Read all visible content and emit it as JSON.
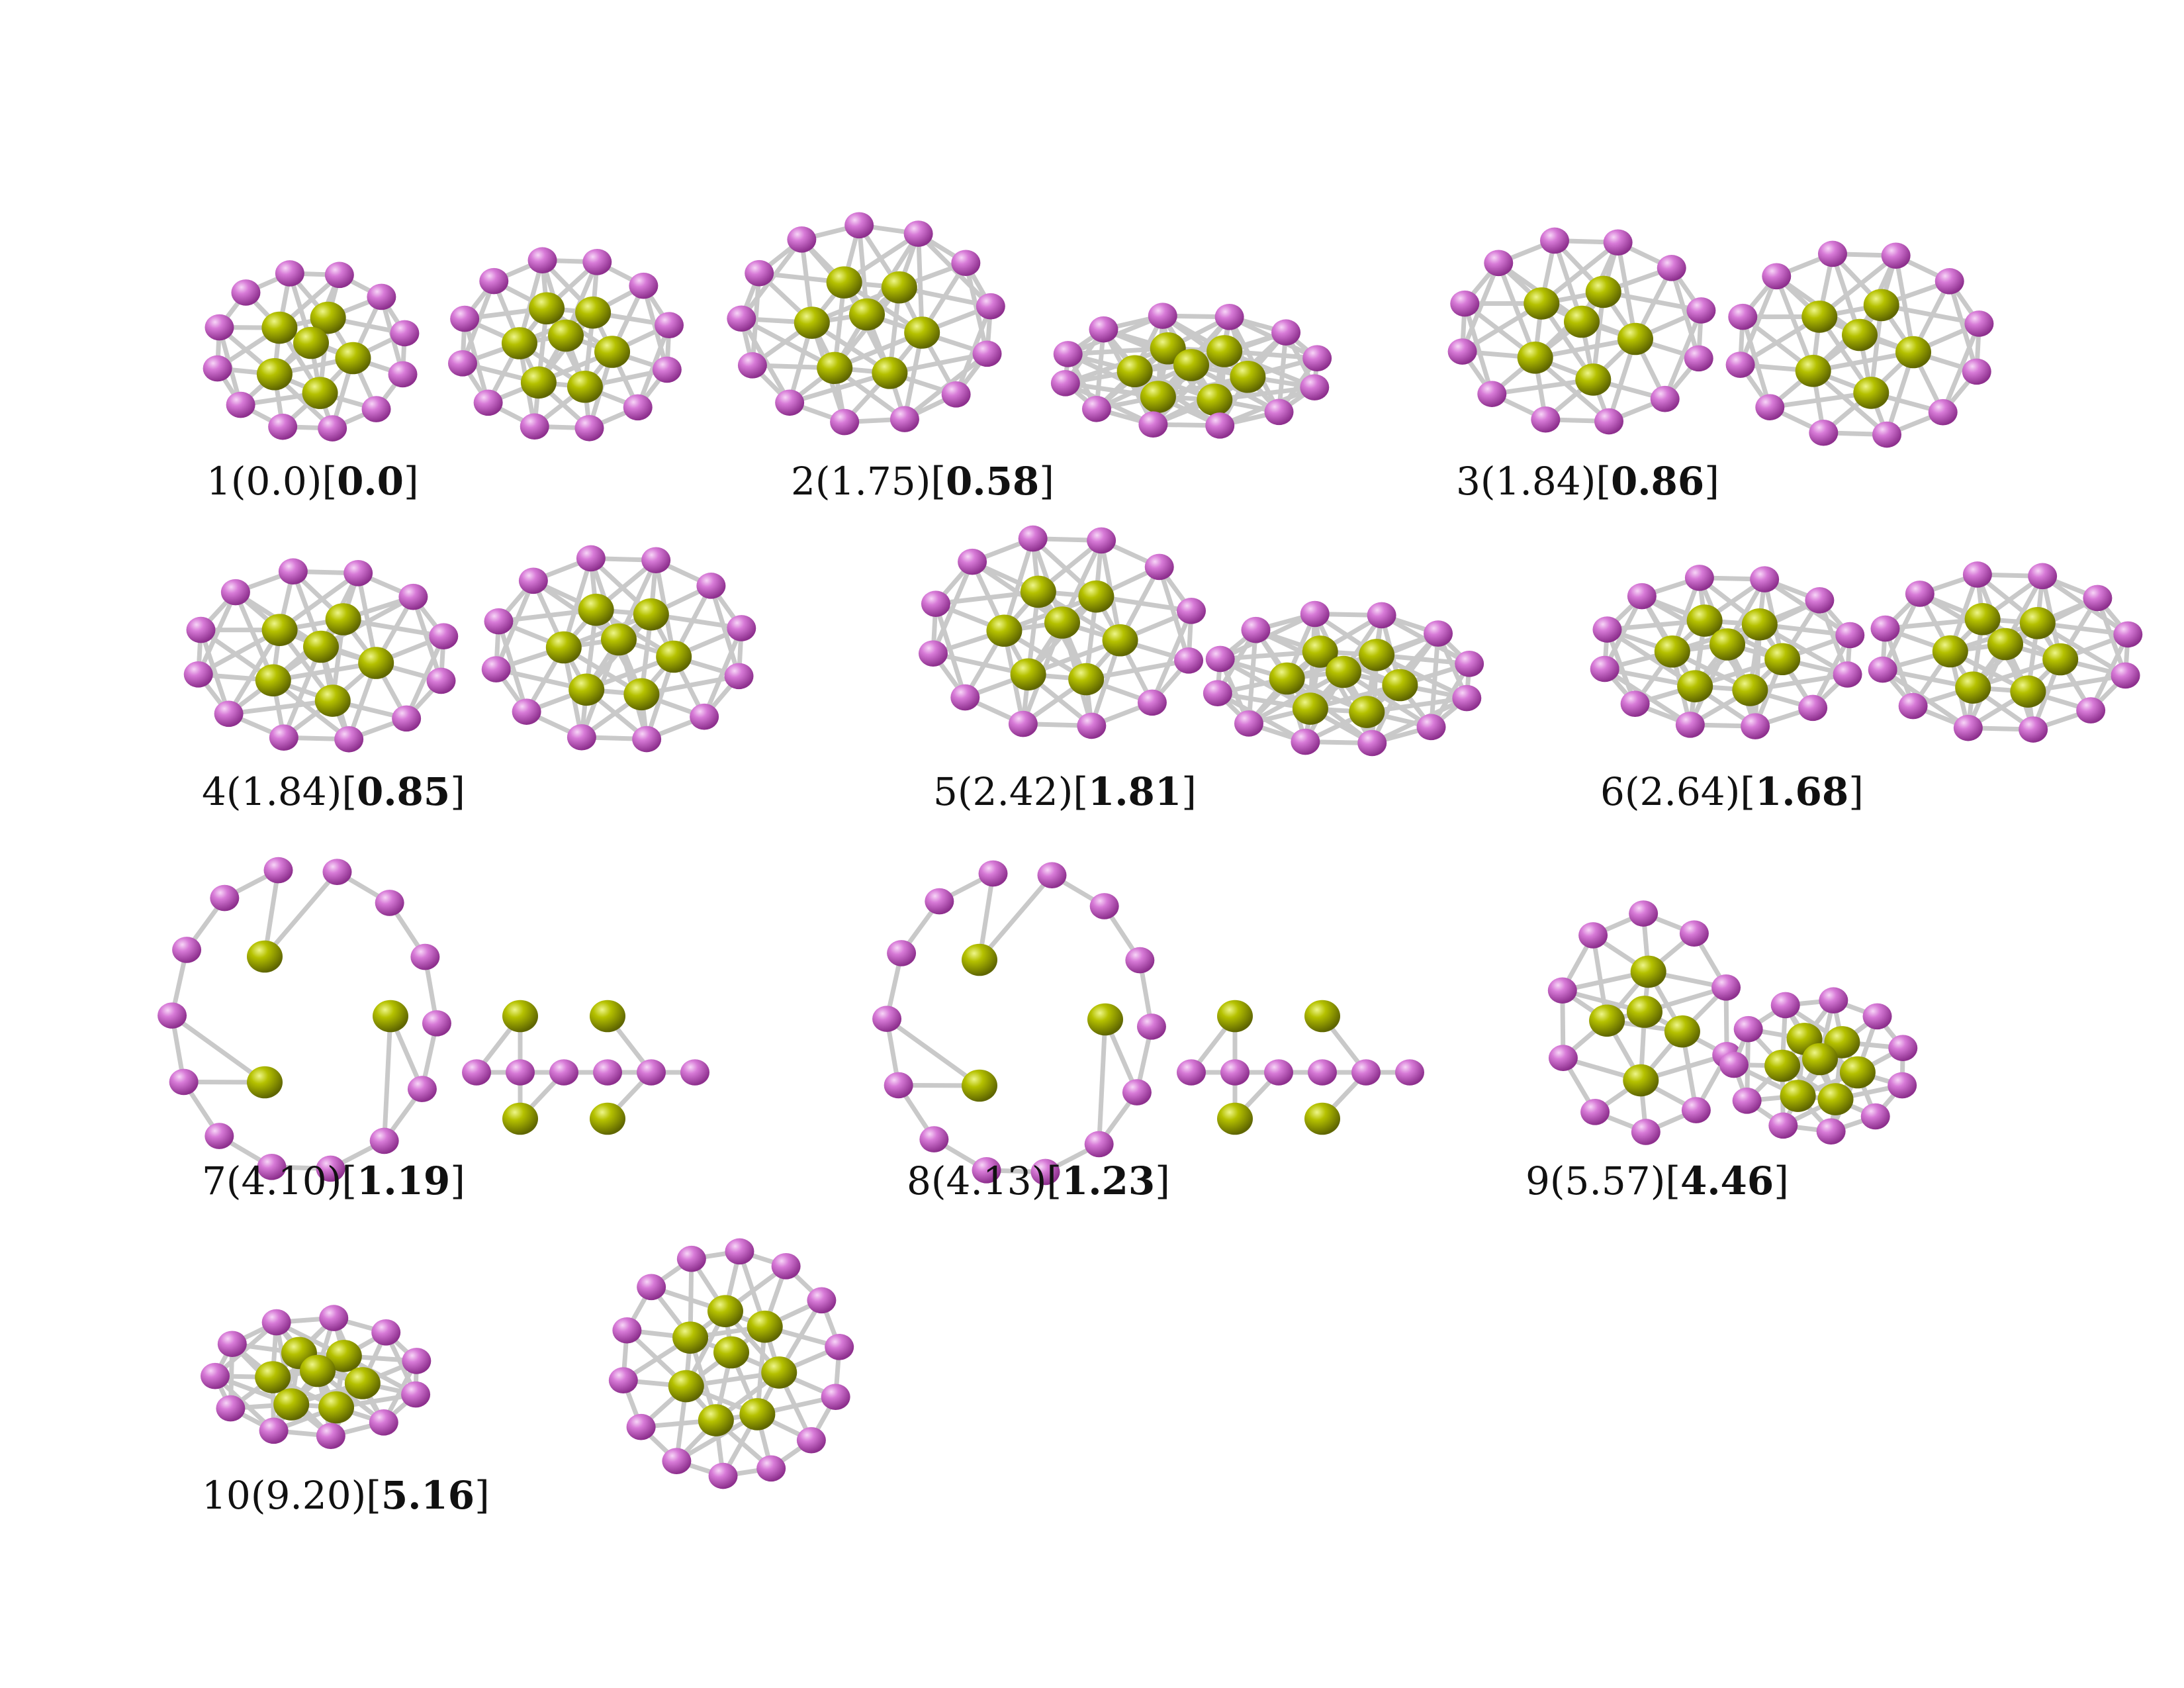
{
  "atom_colors": {
    "magenta_atom": "#cc66cc",
    "yellow_atom": "#a8b400",
    "bond": "#c9c9c9"
  },
  "isomers": [
    {
      "id": "1",
      "open": "(",
      "rel_energy": "0.0",
      "close": ")",
      "bopen": "[",
      "bold_energy": "0.0",
      "bclose": "]"
    },
    {
      "id": "2",
      "open": "(",
      "rel_energy": "1.75",
      "close": ")",
      "bopen": "[",
      "bold_energy": "0.58",
      "bclose": "]"
    },
    {
      "id": "3",
      "open": "(",
      "rel_energy": "1.84",
      "close": ")",
      "bopen": "[",
      "bold_energy": "0.86",
      "bclose": "]"
    },
    {
      "id": "4",
      "open": "(",
      "rel_energy": "1.84",
      "close": ")",
      "bopen": "[",
      "bold_energy": "0.85",
      "bclose": "]"
    },
    {
      "id": "5",
      "open": "(",
      "rel_energy": "2.42",
      "close": ")",
      "bopen": "[",
      "bold_energy": "1.81",
      "bclose": "]"
    },
    {
      "id": "6",
      "open": "(",
      "rel_energy": "2.64",
      "close": ")",
      "bopen": "[",
      "bold_energy": "1.68",
      "bclose": "]"
    },
    {
      "id": "7",
      "open": "(",
      "rel_energy": "4.10",
      "close": ")",
      "bopen": "[",
      "bold_energy": "1.19",
      "bclose": "]"
    },
    {
      "id": "8",
      "open": "(",
      "rel_energy": "4.13",
      "close": ")",
      "bopen": "[",
      "bold_energy": "1.23",
      "bclose": "]"
    },
    {
      "id": "9",
      "open": "(",
      "rel_energy": "5.57",
      "close": ")",
      "bopen": "[",
      "bold_energy": "4.46",
      "bclose": "]"
    },
    {
      "id": "10",
      "open": "(",
      "rel_energy": "9.20",
      "close": ")",
      "bopen": "[",
      "bold_energy": "5.16",
      "bclose": "]"
    }
  ]
}
